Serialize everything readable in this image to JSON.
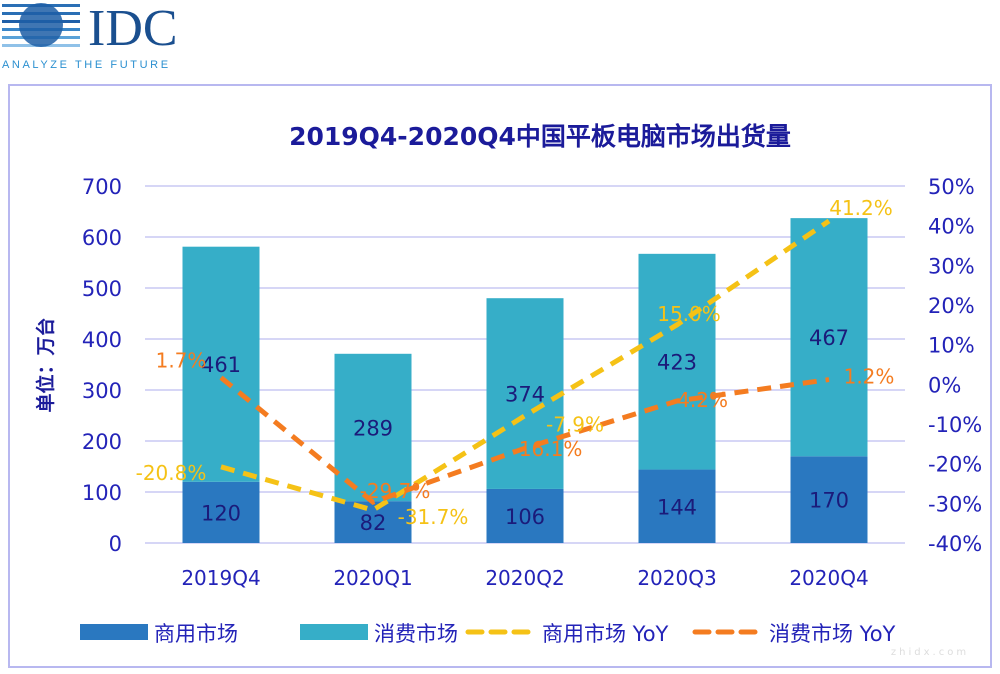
{
  "logo": {
    "text": "IDC",
    "tagline": "ANALYZE THE FUTURE"
  },
  "watermark": "zhidx.com",
  "colors": {
    "commercial": "#2a78c0",
    "consumer": "#36aec8",
    "commercial_yoy": "#f5c216",
    "consumer_yoy": "#f47c20",
    "title": "#1b1b9a",
    "axis_text": "#2323b8",
    "grid": "#c8c8f4"
  },
  "chart_data": {
    "type": "bar",
    "stacked": true,
    "title": "2019Q4-2020Q4中国平板电脑市场出货量",
    "ylabel": "单位：万台",
    "ylim": [
      0,
      700
    ],
    "yticks": [
      0,
      100,
      200,
      300,
      400,
      500,
      600,
      700
    ],
    "y2lim": [
      -40,
      50
    ],
    "y2ticks": [
      "-40%",
      "-30%",
      "-20%",
      "-10%",
      "0%",
      "10%",
      "20%",
      "30%",
      "40%",
      "50%"
    ],
    "grid": true,
    "legend_position": "bottom",
    "categories": [
      "2019Q4",
      "2020Q1",
      "2020Q2",
      "2020Q3",
      "2020Q4"
    ],
    "series": [
      {
        "name": "商用市场",
        "type": "bar",
        "values": [
          120,
          82,
          106,
          144,
          170
        ]
      },
      {
        "name": "消费市场",
        "type": "bar",
        "values": [
          461,
          289,
          374,
          423,
          467
        ]
      },
      {
        "name": "商用市场 YoY",
        "type": "line",
        "axis": "right",
        "values": [
          -20.8,
          -31.7,
          -7.9,
          15.0,
          41.2
        ],
        "labels": [
          "-20.8%",
          "-31.7%",
          "-7.9%",
          "15.0%",
          "41.2%"
        ]
      },
      {
        "name": "消费市场 YoY",
        "type": "line",
        "axis": "right",
        "values": [
          1.7,
          -29.7,
          -16.1,
          -4.2,
          1.2
        ],
        "labels": [
          "1.7%",
          "-29.7%",
          "-16.1%",
          "-4.2%",
          "1.2%"
        ]
      }
    ]
  }
}
